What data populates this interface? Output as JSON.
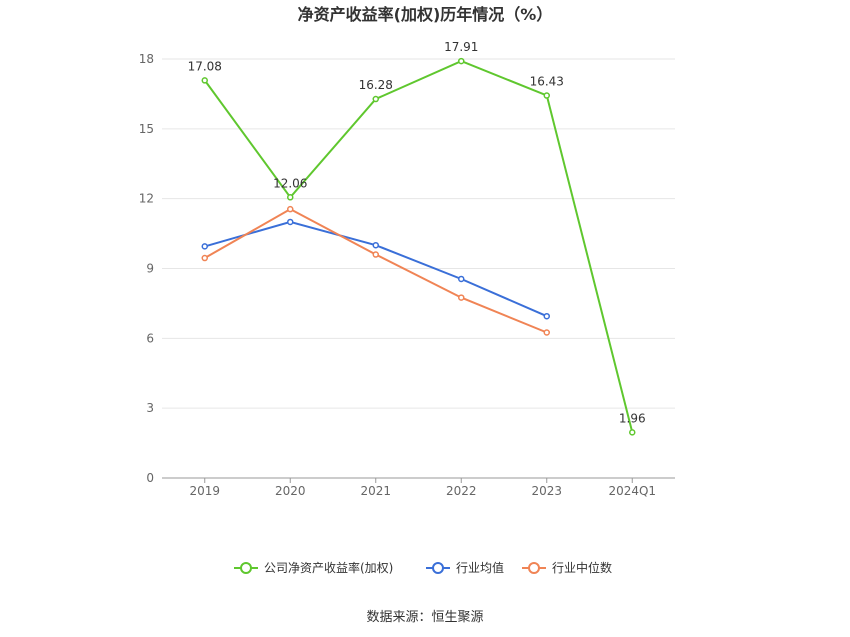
{
  "chart_data": {
    "type": "line",
    "title": "净资产收益率(加权)历年情况（%）",
    "categories": [
      "2019",
      "2020",
      "2021",
      "2022",
      "2023",
      "2024Q1"
    ],
    "ylim": [
      0,
      18
    ],
    "yticks": [
      0,
      3,
      6,
      9,
      12,
      15,
      18
    ],
    "grid": true,
    "legend_position": "bottom",
    "series": [
      {
        "name": "公司净资产收益率(加权)",
        "color": "#5fc72e",
        "values": [
          17.08,
          12.06,
          16.28,
          17.91,
          16.43,
          1.96
        ],
        "labels": [
          "17.08",
          "12.06",
          "16.28",
          "17.91",
          "16.43",
          "1.96"
        ]
      },
      {
        "name": "行业均值",
        "color": "#3a6fd8",
        "values": [
          9.95,
          11.0,
          10.0,
          8.55,
          6.95,
          null
        ]
      },
      {
        "name": "行业中位数",
        "color": "#f08455",
        "values": [
          9.45,
          11.55,
          9.6,
          7.75,
          6.25,
          null
        ]
      }
    ]
  },
  "footer": {
    "source": "数据来源：恒生聚源"
  }
}
